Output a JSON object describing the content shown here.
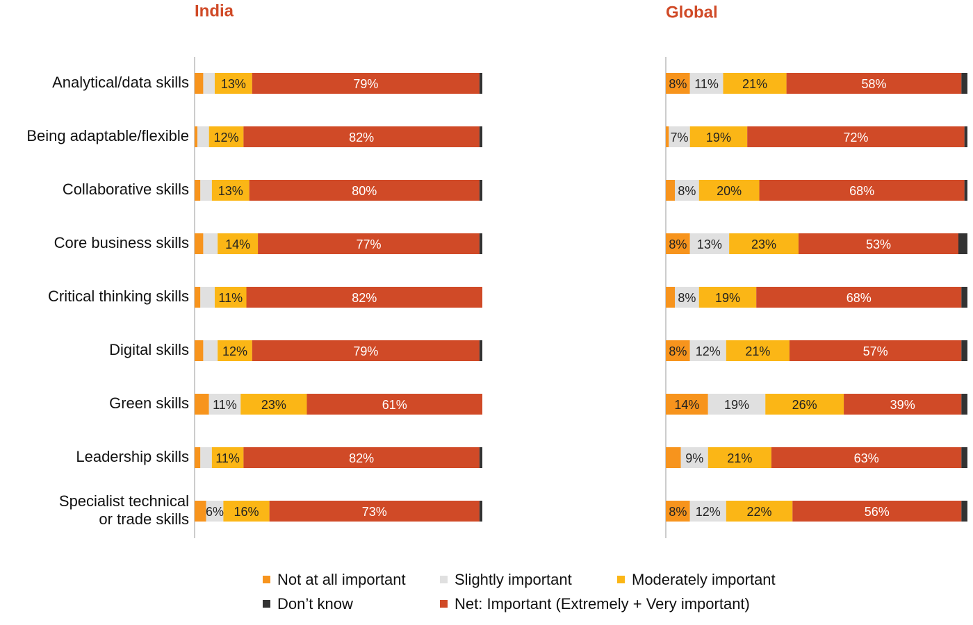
{
  "chart_data": [
    {
      "type": "bar",
      "orientation": "horizontal",
      "stacked": true,
      "title": "India",
      "categories": [
        "Analytical/data skills",
        "Being adaptable/flexible",
        "Collaborative skills",
        "Core business skills",
        "Critical thinking skills",
        "Digital skills",
        "Green skills",
        "Leadership skills",
        "Specialist technical\nor trade skills"
      ],
      "xlim": [
        0,
        100
      ],
      "series": [
        {
          "name": "Not at all important",
          "color": "#f7941d",
          "values": [
            3,
            1,
            2,
            3,
            2,
            3,
            5,
            2,
            4
          ],
          "value_labels": [
            null,
            null,
            null,
            null,
            null,
            null,
            null,
            null,
            null
          ]
        },
        {
          "name": "Slightly important",
          "color": "#e0e0e0",
          "values": [
            4,
            4,
            4,
            5,
            5,
            5,
            11,
            4,
            6
          ],
          "value_labels": [
            null,
            null,
            null,
            null,
            null,
            null,
            "11%",
            null,
            "6%"
          ]
        },
        {
          "name": "Moderately important",
          "color": "#fbb616",
          "values": [
            13,
            12,
            13,
            14,
            11,
            12,
            23,
            11,
            16
          ],
          "value_labels": [
            "13%",
            "12%",
            "13%",
            "14%",
            "11%",
            "12%",
            "23%",
            "11%",
            "16%"
          ]
        },
        {
          "name": "Net: Important (Extremely + Very important)",
          "color": "#d04a27",
          "values": [
            79,
            82,
            80,
            77,
            82,
            79,
            61,
            82,
            73
          ],
          "value_labels": [
            "79%",
            "82%",
            "80%",
            "77%",
            "82%",
            "79%",
            "61%",
            "82%",
            "73%"
          ]
        },
        {
          "name": "Don’t know",
          "color": "#333333",
          "values": [
            1,
            1,
            1,
            1,
            0,
            1,
            0,
            1,
            1
          ],
          "value_labels": [
            null,
            null,
            null,
            null,
            null,
            null,
            null,
            null,
            null
          ]
        }
      ]
    },
    {
      "type": "bar",
      "orientation": "horizontal",
      "stacked": true,
      "title": "Global",
      "xlim": [
        0,
        100
      ],
      "series": [
        {
          "color": "#f7941d",
          "values": [
            8,
            1,
            3,
            8,
            3,
            8,
            14,
            5,
            8
          ],
          "value_labels": [
            "8%",
            null,
            null,
            "8%",
            null,
            "8%",
            "14%",
            null,
            "8%"
          ]
        },
        {
          "color": "#e0e0e0",
          "values": [
            11,
            7,
            8,
            13,
            8,
            12,
            19,
            9,
            12
          ],
          "value_labels": [
            "11%",
            "7%",
            "8%",
            "13%",
            "8%",
            "12%",
            "19%",
            "9%",
            "12%"
          ]
        },
        {
          "color": "#fbb616",
          "values": [
            21,
            19,
            20,
            23,
            19,
            21,
            26,
            21,
            22
          ],
          "value_labels": [
            "21%",
            "19%",
            "20%",
            "23%",
            "19%",
            "21%",
            "26%",
            "21%",
            "22%"
          ]
        },
        {
          "color": "#d04a27",
          "values": [
            58,
            72,
            68,
            53,
            68,
            57,
            39,
            63,
            56
          ],
          "value_labels": [
            "58%",
            "72%",
            "68%",
            "53%",
            "68%",
            "57%",
            "39%",
            "63%",
            "56%"
          ]
        },
        {
          "color": "#333333",
          "values": [
            2,
            1,
            1,
            3,
            2,
            2,
            2,
            2,
            2
          ],
          "value_labels": [
            null,
            null,
            null,
            null,
            null,
            null,
            null,
            null,
            null
          ]
        }
      ]
    }
  ]
}
